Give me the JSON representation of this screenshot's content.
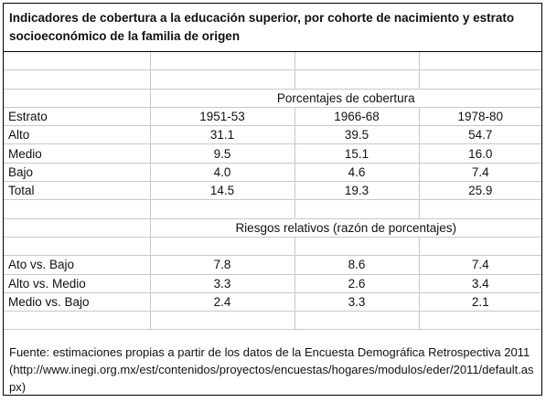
{
  "title": "Indicadores de cobertura a la educación superior, por cohorte de nacimiento y estrato socioeconómico de la familia de origen",
  "coverage": {
    "section_label": "Porcentajes de cobertura",
    "header_label": "Estrato",
    "cohorts": [
      "1951-53",
      "1966-68",
      "1978-80"
    ],
    "rows": [
      {
        "label": "Alto",
        "values": [
          "31.1",
          "39.5",
          "54.7"
        ]
      },
      {
        "label": "Medio",
        "values": [
          "9.5",
          "15.1",
          "16.0"
        ]
      },
      {
        "label": "Bajo",
        "values": [
          "4.0",
          "4.6",
          "7.4"
        ]
      },
      {
        "label": "Total",
        "values": [
          "14.5",
          "19.3",
          "25.9"
        ]
      }
    ]
  },
  "risks": {
    "section_label": "Riesgos relativos (razón de porcentajes)",
    "rows": [
      {
        "label": "Ato vs. Bajo",
        "values": [
          "7.8",
          "8.6",
          "7.4"
        ]
      },
      {
        "label": "Alto vs. Medio",
        "values": [
          "3.3",
          "2.6",
          "3.4"
        ]
      },
      {
        "label": "Medio vs. Bajo",
        "values": [
          "2.4",
          "3.3",
          "2.1"
        ]
      }
    ]
  },
  "source": {
    "line1": "Fuente: estimaciones propias a partir de los datos de la Encuesta Demográfica Retrospectiva 2011",
    "line2": "(http://www.inegi.org.mx/est/contenidos/proyectos/encuestas/hogares/modulos/eder/2011/default.aspx)"
  }
}
